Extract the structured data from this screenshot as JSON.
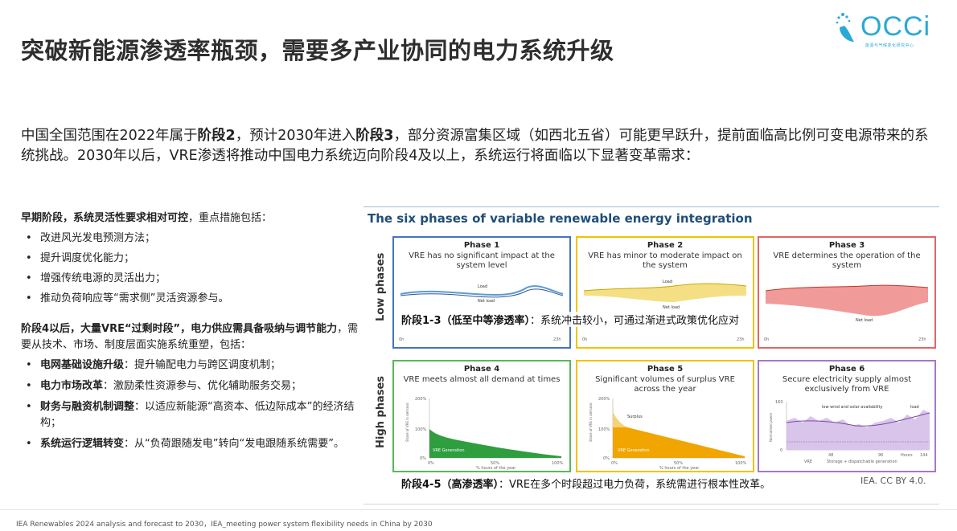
{
  "title": "突破新能源渗透率瓶颈，需要多产业协同的电力系统升级",
  "logo": {
    "text": "OCCi",
    "subtitle": "能源与气候变化研究中心"
  },
  "intro": {
    "p1": "中国全国范围在2022年属于",
    "b1": "阶段2",
    "p2": "，预计2030年进入",
    "b2": "阶段3",
    "p3": "，部分资源富集区域（如西北五省）可能更早跃升，提前面临高比例可变电源带来的系统挑战。2030年以后，VRE渗透将推动中国电力系统迈向阶段4及以上，系统运行将面临以下显著变革需求："
  },
  "early": {
    "head": "早期阶段，系统灵活性要求相对可控",
    "tail": "，重点措施包括：",
    "items": [
      "改进风光发电预测方法；",
      "提升调度优化能力；",
      "增强传统电源的灵活出力；",
      "推动负荷响应等“需求侧”灵活资源参与。"
    ]
  },
  "stage4": {
    "head": "阶段4以后，大量VRE“过剩时段”，电力供应需具备吸纳与调节能力",
    "tail": "，需要从技术、市场、制度层面实施系统重塑，包括：",
    "items": [
      {
        "bold": "电网基础设施升级",
        "text": "：提升输配电力与跨区调度机制；"
      },
      {
        "bold": "电力市场改革",
        "text": "：激励柔性资源参与、优化辅助服务交易；"
      },
      {
        "bold": "财务与融资机制调整",
        "text": "：以适应新能源“高资本、低边际成本”的经济结构；"
      },
      {
        "bold": "系统运行逻辑转变",
        "text": "：从“负荷跟随发电”转向“发电跟随系统需要”。"
      }
    ]
  },
  "figure": {
    "title": "The six phases of variable renewable energy integration",
    "low_label": "Low phases",
    "high_label": "High phases",
    "phases": [
      {
        "name": "Phase 1",
        "desc": "VRE has no significant impact at the system level",
        "color": "#4472c4"
      },
      {
        "name": "Phase 2",
        "desc": "VRE has minor to moderate impact on the system",
        "color": "#f2c200"
      },
      {
        "name": "Phase 3",
        "desc": "VRE determines the operation of the system",
        "color": "#e06666"
      },
      {
        "name": "Phase 4",
        "desc": "VRE meets almost all demand at times",
        "color": "#59b85c"
      },
      {
        "name": "Phase 5",
        "desc": "Significant volumes of surplus VRE across the year",
        "color": "#f2c200"
      },
      {
        "name": "Phase 6",
        "desc": "Secure electricity supply almost exclusively from VRE",
        "color": "#a678c7"
      }
    ],
    "small": {
      "load": "Load",
      "net_load": "Net load",
      "h0": "0h",
      "h23": "23h",
      "y200": "200%",
      "y100": "100%",
      "y0": "0%",
      "x0": "0%",
      "x50": "50%",
      "x100": "100%",
      "x_axis": "% hours of the year",
      "y_axis": "Share of VRE in demand",
      "vre_gen": "VRE Generation",
      "surplus": "Surplus",
      "p6_160": "160",
      "p6_0": "0",
      "p6_48": "48",
      "p6_96": "96",
      "p6_144": "144",
      "p6_hours": "Hours",
      "p6_low": "low wind and solar availability",
      "p6_load": "load",
      "p6_yaxis": "Normalised power",
      "p6_legend1": "VRE",
      "p6_legend2": "Storage + dispatchable generation"
    },
    "overlay_low": {
      "bold": "阶段1-3（低至中等渗透率）",
      "text": "：系统冲击较小，可通过渐进式政策优化应对"
    },
    "overlay_high": {
      "bold": "阶段4-5（高渗透率）",
      "text": "：VRE在多个时段超过电力负荷，系统需进行根本性改革。"
    },
    "credit": "IEA. CC BY 4.0."
  },
  "footer": "IEA Renewables 2024 analysis and forecast to 2030，IEA_meeting power system flexibility needs in China by 2030"
}
